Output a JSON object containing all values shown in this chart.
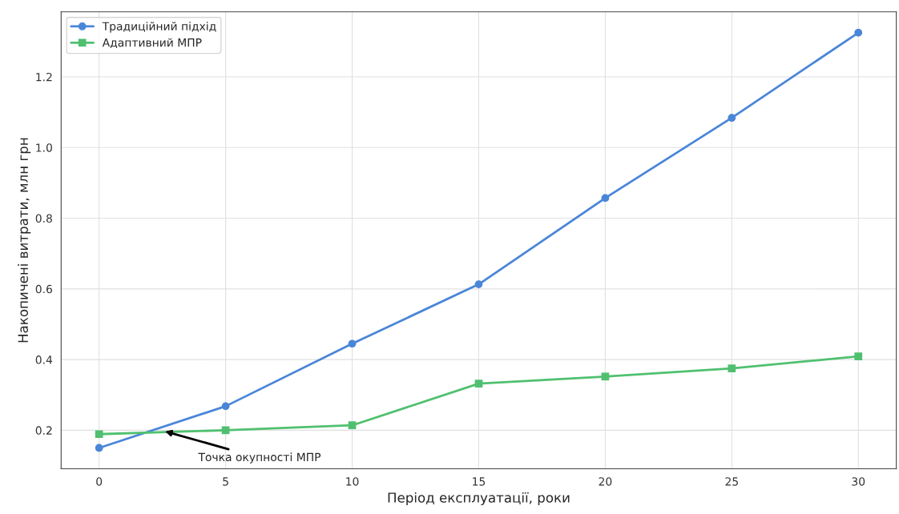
{
  "chart_data": {
    "type": "line",
    "xlabel": "Період експлуатації, роки",
    "ylabel": "Накопичені витрати, млн грн",
    "x": [
      0,
      5,
      10,
      15,
      20,
      25,
      30
    ],
    "series": [
      {
        "name": "Традиційний підхід",
        "color": "#4a86d8",
        "marker": "circle",
        "values": [
          0.15,
          0.268,
          0.445,
          0.613,
          0.857,
          1.084,
          1.325
        ]
      },
      {
        "name": "Адаптивний МПР",
        "color": "#50c070",
        "marker": "square",
        "values": [
          0.189,
          0.2,
          0.214,
          0.332,
          0.352,
          0.375,
          0.409
        ]
      }
    ],
    "xlim": [
      -1.5,
      31.5
    ],
    "xticks": [
      0,
      5,
      10,
      15,
      20,
      25,
      30
    ],
    "ylim": [
      0.091,
      1.384
    ],
    "yticks": [
      0.2,
      0.4,
      0.6,
      0.8,
      {
        "value": 1.0,
        "label": "1.0"
      },
      1.2
    ],
    "annotations": [
      {
        "text": "Точка окупності МПР",
        "x": 2.6,
        "y": 0.197
      }
    ],
    "grid": true,
    "legend": "top left",
    "line_style": "solid"
  }
}
